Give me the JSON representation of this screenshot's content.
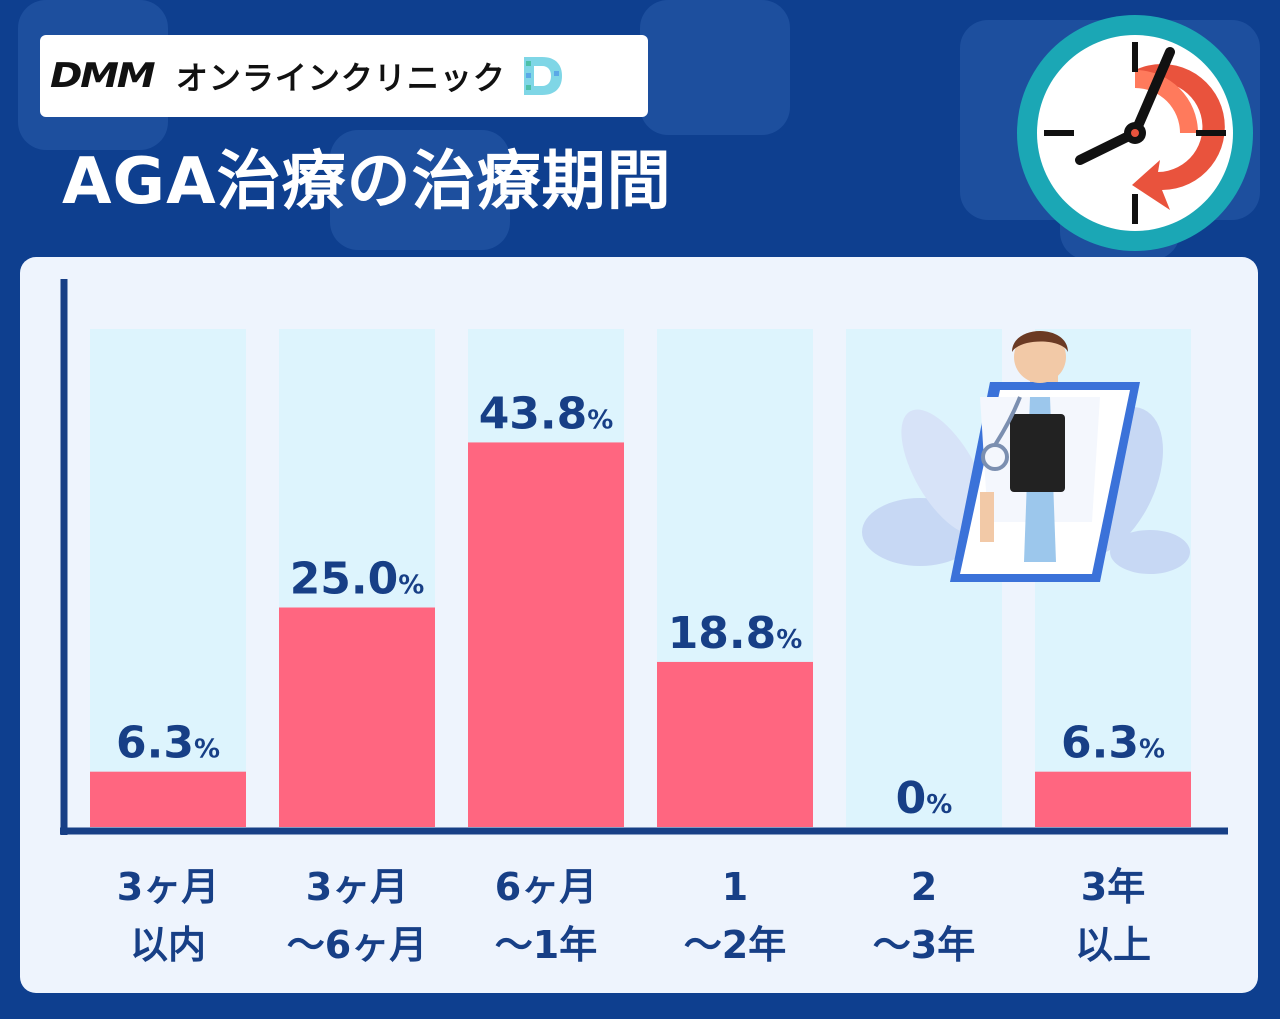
{
  "brand": {
    "logo_text": "DMM",
    "service_name": "オンラインクリニック",
    "mark_letter": "D"
  },
  "title": "AGA治療の治療期間",
  "icons": [
    "clock-icon",
    "doctor-illustration"
  ],
  "colors": {
    "background": "#0e3f8f",
    "panel": "#eef4fd",
    "bar": "#ff6680",
    "bar_track": "#ddf4fd",
    "axis": "#173f86",
    "text": "#173f86"
  },
  "chart_data": {
    "type": "bar",
    "title": "AGA治療の治療期間",
    "categories": [
      [
        "3ヶ月",
        "以内"
      ],
      [
        "3ヶ月",
        "〜6ヶ月"
      ],
      [
        "6ヶ月",
        "〜1年"
      ],
      [
        "1",
        "〜2年"
      ],
      [
        "2",
        "〜3年"
      ],
      [
        "3年",
        "以上"
      ]
    ],
    "values": [
      6.3,
      25.0,
      43.8,
      18.8,
      0,
      6.3
    ],
    "value_labels": [
      "6.3",
      "25.0",
      "43.8",
      "18.8",
      "0",
      "6.3"
    ],
    "unit": "%",
    "ylim": [
      0,
      50
    ],
    "grid": false,
    "legend": "none"
  }
}
